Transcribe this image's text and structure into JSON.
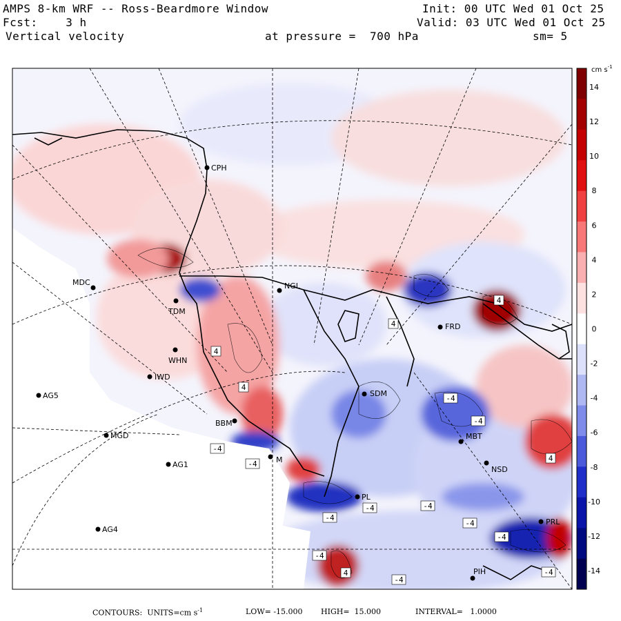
{
  "header": {
    "model": "AMPS 8-km WRF -- Ross-Beardmore Window",
    "init": "Init: 00 UTC Wed 01 Oct 25",
    "forecast": "Fcst:    3 h",
    "valid": "Valid: 03 UTC Wed 01 Oct 25",
    "field": "Vertical velocity",
    "pressure": "at pressure =  700 hPa",
    "smoothing": "sm= 5"
  },
  "colorbar": {
    "units": "cm s",
    "units_exp": "-1",
    "labels": [
      "14",
      "12",
      "10",
      "8",
      "6",
      "4",
      "2",
      "0",
      "-2",
      "-4",
      "-6",
      "-8",
      "-10",
      "-12",
      "-14"
    ],
    "colors": [
      "#7f0000",
      "#a30000",
      "#c40000",
      "#e01010",
      "#f04040",
      "#f87878",
      "#fab0b0",
      "#fde0e0",
      "#ffffff",
      "#dde0fa",
      "#b0b8f4",
      "#7f8cea",
      "#4a5ada",
      "#1f2ec8",
      "#0a14a8",
      "#000a80",
      "#000050"
    ]
  },
  "stations": [
    {
      "name": "CPH"
    },
    {
      "name": "MDC"
    },
    {
      "name": "NGL"
    },
    {
      "name": "TDM"
    },
    {
      "name": "WHN"
    },
    {
      "name": "IWD"
    },
    {
      "name": "AG5"
    },
    {
      "name": "MGD"
    },
    {
      "name": "AG1"
    },
    {
      "name": "AG4"
    },
    {
      "name": "FRD"
    },
    {
      "name": "SDM"
    },
    {
      "name": "BBM"
    },
    {
      "name": "M"
    },
    {
      "name": "MBT"
    },
    {
      "name": "NSD"
    },
    {
      "name": "PL"
    },
    {
      "name": "PRL"
    },
    {
      "name": "PIH"
    }
  ],
  "contour_labels": [
    "4",
    "-4"
  ],
  "footer": {
    "contours": "CONTOURS:  UNITS=cm s",
    "units_exp": "-1",
    "low": "LOW= -15.000",
    "high": "HIGH=  15.000",
    "interval": "INTERVAL=   1.0000"
  }
}
